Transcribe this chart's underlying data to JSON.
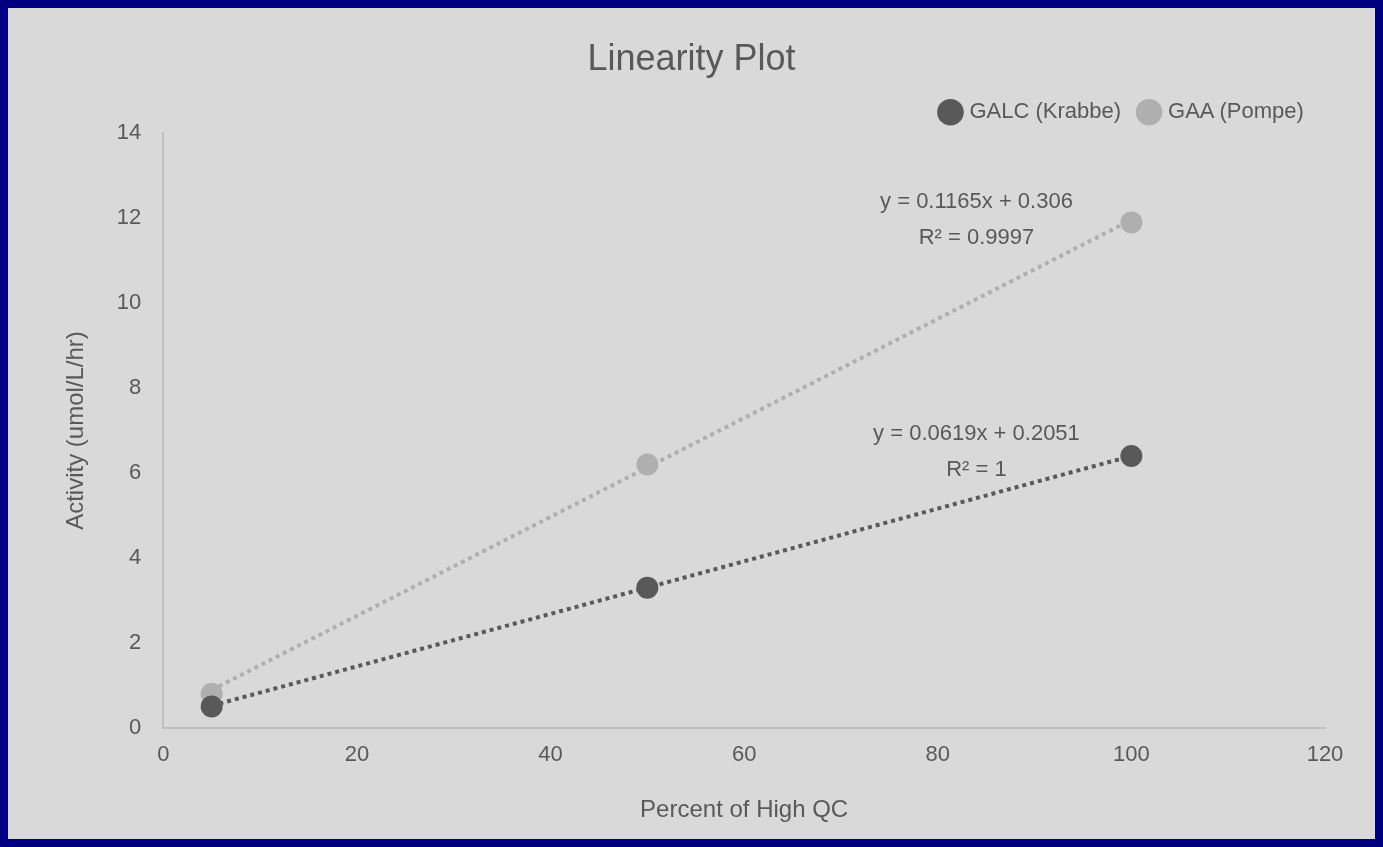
{
  "chart_data": {
    "type": "scatter",
    "title": "Linearity Plot",
    "xlabel": "Percent of High QC",
    "ylabel": "Activity (umol/L/hr)",
    "x": [
      5,
      50,
      100
    ],
    "xlim": [
      0,
      120
    ],
    "xticks": [
      0,
      20,
      40,
      60,
      80,
      100,
      120
    ],
    "ylim": [
      0,
      14
    ],
    "yticks": [
      0,
      2,
      4,
      6,
      8,
      10,
      12,
      14
    ],
    "grid": false,
    "legend": "top right",
    "marker": "circle",
    "series": [
      {
        "name": "GALC (Krabbe)",
        "color": "#595959",
        "values": [
          0.5,
          3.3,
          6.4
        ]
      },
      {
        "name": "GAA (Pompe)",
        "color": "#afafaf",
        "values": [
          0.8,
          6.2,
          11.9
        ]
      },
      {
        "type": "line",
        "color": "#595959",
        "values": [
          0.52,
          3.3,
          6.4
        ],
        "line_style": "dotted",
        "marker": "none"
      },
      {
        "type": "line",
        "color": "#afafaf",
        "values": [
          0.89,
          6.13,
          11.96
        ],
        "line_style": "dotted",
        "marker": "none"
      }
    ],
    "annotations": [
      "y = 0.1165x + 0.306",
      "R² = 0.9997",
      "y = 0.0619x + 0.2051",
      "R² = 1"
    ]
  }
}
